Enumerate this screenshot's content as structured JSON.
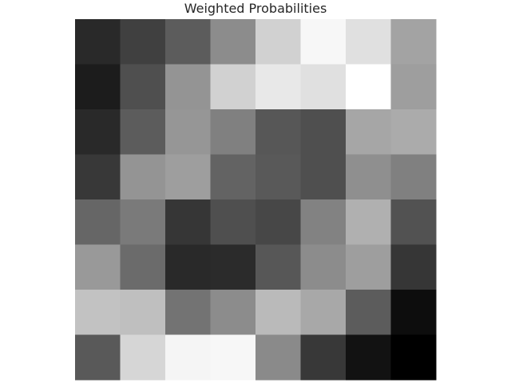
{
  "chart_data": {
    "type": "heatmap",
    "title": "Weighted Probabilities",
    "xlabel": "",
    "ylabel": "",
    "grid": false,
    "colormap": "grayscale",
    "rows": 8,
    "cols": 8,
    "values": [
      [
        0.16,
        0.25,
        0.36,
        0.55,
        0.82,
        0.97,
        0.88,
        0.64
      ],
      [
        0.11,
        0.31,
        0.58,
        0.82,
        0.91,
        0.88,
        1.0,
        0.62
      ],
      [
        0.16,
        0.36,
        0.59,
        0.5,
        0.34,
        0.31,
        0.65,
        0.67
      ],
      [
        0.22,
        0.58,
        0.62,
        0.39,
        0.35,
        0.31,
        0.56,
        0.5
      ],
      [
        0.4,
        0.48,
        0.21,
        0.31,
        0.28,
        0.51,
        0.69,
        0.32
      ],
      [
        0.6,
        0.42,
        0.16,
        0.17,
        0.34,
        0.55,
        0.62,
        0.21
      ],
      [
        0.76,
        0.75,
        0.45,
        0.55,
        0.73,
        0.66,
        0.36,
        0.05
      ],
      [
        0.35,
        0.84,
        0.96,
        0.97,
        0.54,
        0.22,
        0.07,
        0.0
      ]
    ]
  }
}
